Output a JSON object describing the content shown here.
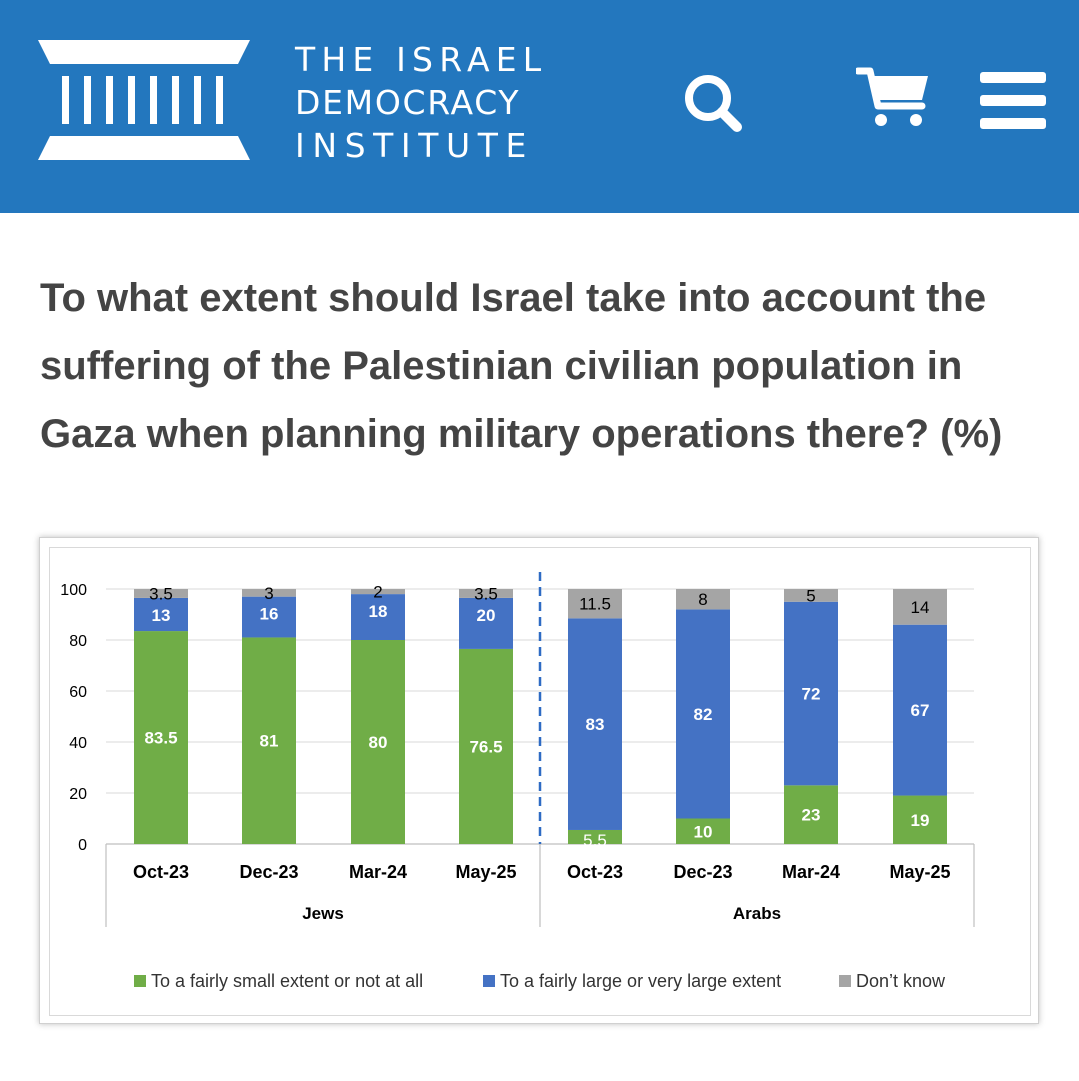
{
  "header": {
    "logo_lines": [
      "THE ISRAEL",
      "DEMOCRACY",
      "INSTITUTE"
    ],
    "bg_color": "#2377be",
    "icons": [
      "search-icon",
      "cart-icon",
      "menu-icon"
    ]
  },
  "title": "To what extent should Israel take into account the suffering of the Palestinian civilian population in Gaza when planning military operations there? (%)",
  "chart_data": {
    "type": "bar",
    "stacked": true,
    "categories": [
      "Oct-23",
      "Dec-23",
      "Mar-24",
      "May-25",
      "Oct-23",
      "Dec-23",
      "Mar-24",
      "May-25"
    ],
    "groups": [
      {
        "label": "Jews",
        "categories": [
          "Oct-23",
          "Dec-23",
          "Mar-24",
          "May-25"
        ]
      },
      {
        "label": "Arabs",
        "categories": [
          "Oct-23",
          "Dec-23",
          "Mar-24",
          "May-25"
        ]
      }
    ],
    "series": [
      {
        "name": "To a fairly small extent or not at all",
        "color": "#70ad47",
        "values": [
          83.5,
          81,
          80,
          76.5,
          5.5,
          10,
          23,
          19
        ]
      },
      {
        "name": "To a fairly large or very large extent",
        "color": "#4472c4",
        "values": [
          13,
          16,
          18,
          20,
          83,
          82,
          72,
          67
        ]
      },
      {
        "name": "Don’t know",
        "color": "#a5a5a5",
        "values": [
          3.5,
          3,
          2,
          3.5,
          11.5,
          8,
          5,
          14
        ]
      }
    ],
    "value_labels": [
      [
        "83.5",
        "81",
        "80",
        "76.5",
        "5.5",
        "10",
        "23",
        "19"
      ],
      [
        "13",
        "16",
        "18",
        "20",
        "83",
        "82",
        "72",
        "67"
      ],
      [
        "3.5",
        "3",
        "2",
        "3.5",
        "11.5",
        "8",
        "5",
        "14"
      ]
    ],
    "yticks": [
      "0",
      "20",
      "40",
      "60",
      "80",
      "100"
    ],
    "ylim": [
      0,
      100
    ],
    "grid": true,
    "legend_position": "bottom",
    "divider": "dashed line between Jews and Arabs groups"
  }
}
